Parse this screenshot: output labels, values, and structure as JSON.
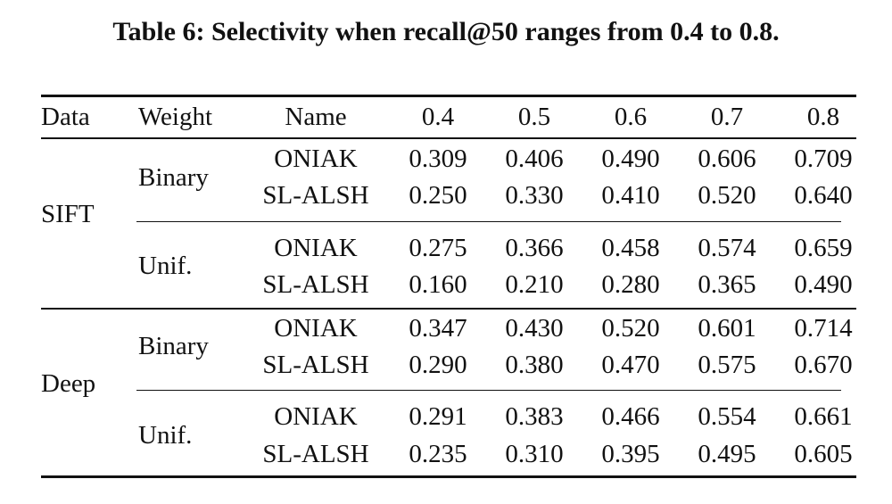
{
  "caption": "Table 6: Selectivity when recall@50 ranges from 0.4 to 0.8.",
  "headers": [
    "Data",
    "Weight",
    "Name",
    "0.4",
    "0.5",
    "0.6",
    "0.7",
    "0.8"
  ],
  "groups": [
    {
      "data": "SIFT",
      "weights": [
        {
          "weight": "Binary",
          "rows": [
            {
              "name": "ONIAK",
              "values": [
                "0.309",
                "0.406",
                "0.490",
                "0.606",
                "0.709"
              ]
            },
            {
              "name": "SL-ALSH",
              "values": [
                "0.250",
                "0.330",
                "0.410",
                "0.520",
                "0.640"
              ]
            }
          ]
        },
        {
          "weight": "Unif.",
          "rows": [
            {
              "name": "ONIAK",
              "values": [
                "0.275",
                "0.366",
                "0.458",
                "0.574",
                "0.659"
              ]
            },
            {
              "name": "SL-ALSH",
              "values": [
                "0.160",
                "0.210",
                "0.280",
                "0.365",
                "0.490"
              ]
            }
          ]
        }
      ]
    },
    {
      "data": "Deep",
      "weights": [
        {
          "weight": "Binary",
          "rows": [
            {
              "name": "ONIAK",
              "values": [
                "0.347",
                "0.430",
                "0.520",
                "0.601",
                "0.714"
              ]
            },
            {
              "name": "SL-ALSH",
              "values": [
                "0.290",
                "0.380",
                "0.470",
                "0.575",
                "0.670"
              ]
            }
          ]
        },
        {
          "weight": "Unif.",
          "rows": [
            {
              "name": "ONIAK",
              "values": [
                "0.291",
                "0.383",
                "0.466",
                "0.554",
                "0.661"
              ]
            },
            {
              "name": "SL-ALSH",
              "values": [
                "0.235",
                "0.310",
                "0.395",
                "0.495",
                "0.605"
              ]
            }
          ]
        }
      ]
    }
  ]
}
